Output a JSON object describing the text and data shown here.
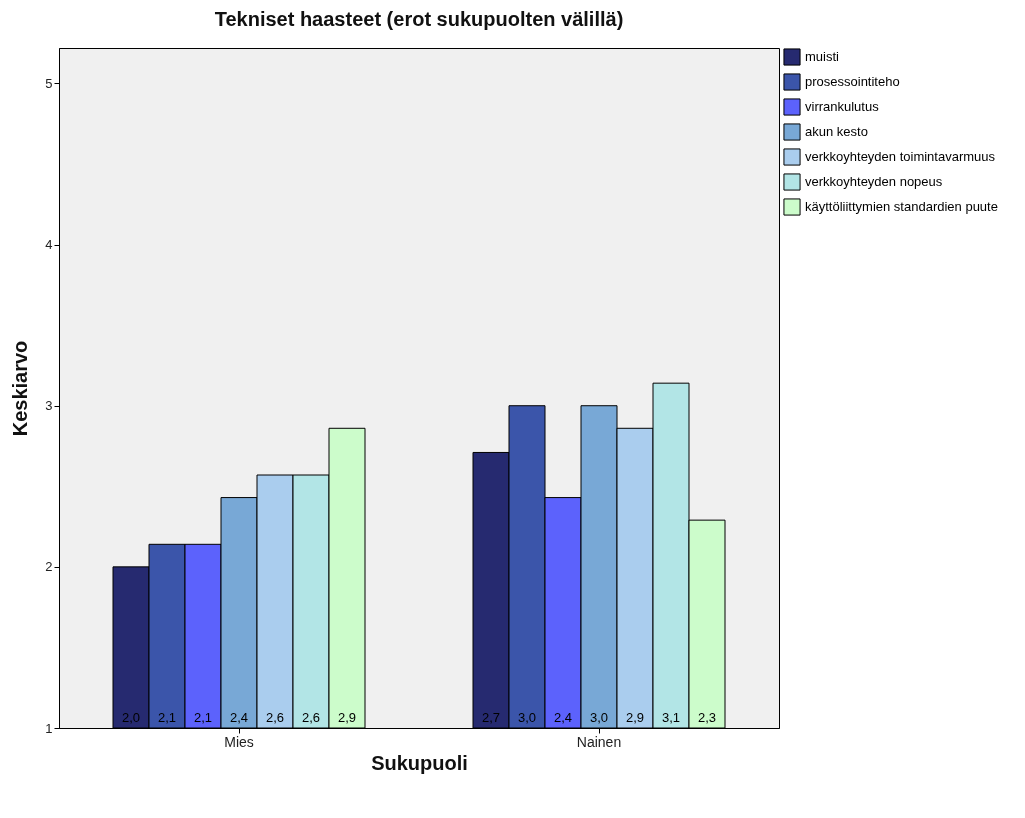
{
  "chart_data": {
    "type": "bar",
    "title": "Tekniset haasteet (erot sukupuolten välillä)",
    "xlabel": "Sukupuoli",
    "ylabel": "Keskiarvo",
    "categories": [
      "Mies",
      "Nainen"
    ],
    "ylim": [
      1,
      5.22
    ],
    "yticks": [
      1,
      2,
      3,
      4,
      5
    ],
    "grid": false,
    "legend": "top right",
    "series": [
      {
        "name": "muisti",
        "color": "#262a70",
        "values": [
          2.0,
          2.71
        ],
        "value_labels": [
          "2,0",
          "2,7"
        ]
      },
      {
        "name": "prosessointiteho",
        "color": "#3b55aa",
        "values": [
          2.14,
          3.0
        ],
        "value_labels": [
          "2,1",
          "3,0"
        ]
      },
      {
        "name": "virrankulutus",
        "color": "#5c62fc",
        "values": [
          2.14,
          2.43
        ],
        "value_labels": [
          "2,1",
          "2,4"
        ]
      },
      {
        "name": "akun kesto",
        "color": "#78a8d6",
        "values": [
          2.43,
          3.0
        ],
        "value_labels": [
          "2,4",
          "3,0"
        ]
      },
      {
        "name": "verkkoyhteyden toimintavarmuus",
        "color": "#aacdee",
        "values": [
          2.57,
          2.86
        ],
        "value_labels": [
          "2,6",
          "2,9"
        ]
      },
      {
        "name": "verkkoyhteyden nopeus",
        "color": "#b2e5e6",
        "values": [
          2.57,
          3.14
        ],
        "value_labels": [
          "2,6",
          "3,1"
        ]
      },
      {
        "name": "käyttöliittymien standardien puute",
        "color": "#ccfccb",
        "values": [
          2.86,
          2.29
        ],
        "value_labels": [
          "2,9",
          "2,3"
        ]
      }
    ]
  }
}
